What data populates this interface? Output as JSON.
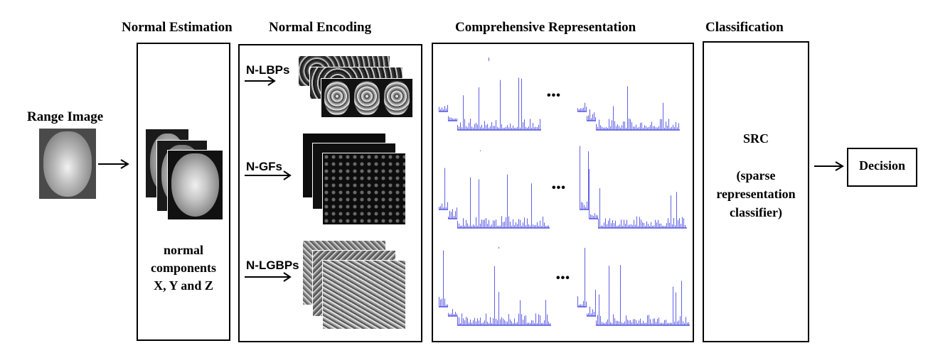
{
  "headers": {
    "normal_estimation": "Normal Estimation",
    "normal_encoding": "Normal Encoding",
    "comprehensive_representation": "Comprehensive Representation",
    "classification": "Classification"
  },
  "input": {
    "label": "Range Image"
  },
  "normal_estimation": {
    "line1": "normal",
    "line2": "components",
    "line3": "X, Y and Z"
  },
  "encoding_labels": [
    "N-LBPs",
    "N-GFs",
    "N-LGBPs"
  ],
  "ellipsis": "•••",
  "classification": {
    "line1": "SRC",
    "line2": "(sparse",
    "line3": "representation",
    "line4": "classifier)"
  },
  "output": {
    "label": "Decision"
  },
  "colors": {
    "histogram": "#3a3adf",
    "border": "#000000"
  }
}
